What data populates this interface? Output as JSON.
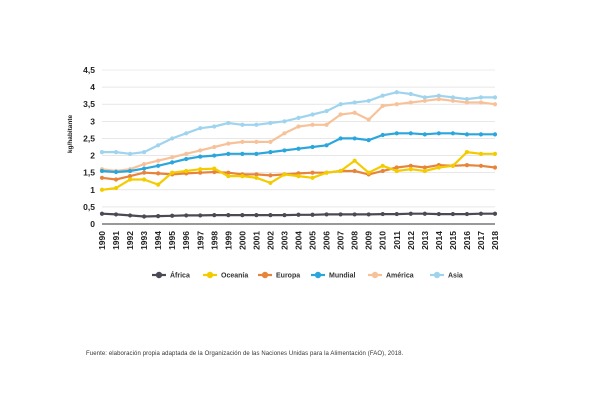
{
  "chart_data": {
    "type": "line",
    "title": "",
    "ylabel": "kg/habitante",
    "xlabel": "",
    "ylim": [
      0,
      4.5
    ],
    "y_ticks": [
      "0",
      "0,5",
      "1",
      "1,5",
      "2",
      "2,5",
      "3",
      "3,5",
      "4",
      "4,5"
    ],
    "grid": true,
    "legend_position": "bottom",
    "categories": [
      "1990",
      "1991",
      "1992",
      "1993",
      "1994",
      "1995",
      "1996",
      "1997",
      "1998",
      "1999",
      "2000",
      "2001",
      "2002",
      "2003",
      "2004",
      "2005",
      "2006",
      "2007",
      "2008",
      "2009",
      "2010",
      "2011",
      "2012",
      "2013",
      "2014",
      "2015",
      "2016",
      "2017",
      "2018"
    ],
    "series": [
      {
        "name": "África",
        "color": "#4a4a55",
        "values": [
          0.3,
          0.28,
          0.25,
          0.22,
          0.23,
          0.24,
          0.25,
          0.25,
          0.26,
          0.26,
          0.26,
          0.26,
          0.26,
          0.26,
          0.27,
          0.27,
          0.28,
          0.28,
          0.28,
          0.28,
          0.29,
          0.29,
          0.3,
          0.3,
          0.29,
          0.29,
          0.29,
          0.3,
          0.3
        ]
      },
      {
        "name": "Oceanía",
        "color": "#f3cc00",
        "values": [
          1.0,
          1.05,
          1.3,
          1.3,
          1.15,
          1.5,
          1.55,
          1.6,
          1.62,
          1.4,
          1.4,
          1.35,
          1.2,
          1.45,
          1.4,
          1.35,
          1.5,
          1.55,
          1.85,
          1.5,
          1.7,
          1.55,
          1.6,
          1.55,
          1.65,
          1.7,
          2.1,
          2.05,
          2.05
        ]
      },
      {
        "name": "Europa",
        "color": "#e8843a",
        "values": [
          1.35,
          1.3,
          1.4,
          1.5,
          1.48,
          1.45,
          1.48,
          1.5,
          1.52,
          1.5,
          1.45,
          1.45,
          1.42,
          1.45,
          1.48,
          1.5,
          1.5,
          1.55,
          1.55,
          1.45,
          1.55,
          1.65,
          1.7,
          1.65,
          1.72,
          1.7,
          1.72,
          1.7,
          1.65
        ]
      },
      {
        "name": "Mundial",
        "color": "#2aa6dc",
        "values": [
          1.55,
          1.52,
          1.55,
          1.62,
          1.7,
          1.8,
          1.9,
          1.97,
          2.0,
          2.05,
          2.05,
          2.05,
          2.1,
          2.15,
          2.2,
          2.25,
          2.3,
          2.5,
          2.5,
          2.45,
          2.6,
          2.65,
          2.65,
          2.62,
          2.65,
          2.65,
          2.62,
          2.62,
          2.62
        ]
      },
      {
        "name": "América",
        "color": "#f7c29a",
        "values": [
          1.6,
          1.55,
          1.6,
          1.75,
          1.85,
          1.95,
          2.05,
          2.15,
          2.25,
          2.35,
          2.4,
          2.4,
          2.4,
          2.65,
          2.85,
          2.9,
          2.9,
          3.2,
          3.25,
          3.05,
          3.45,
          3.5,
          3.55,
          3.6,
          3.65,
          3.6,
          3.55,
          3.55,
          3.5
        ]
      },
      {
        "name": "Asia",
        "color": "#9fd4ef",
        "values": [
          2.1,
          2.1,
          2.05,
          2.1,
          2.3,
          2.5,
          2.65,
          2.8,
          2.85,
          2.95,
          2.9,
          2.9,
          2.95,
          3.0,
          3.1,
          3.2,
          3.3,
          3.5,
          3.55,
          3.6,
          3.75,
          3.85,
          3.8,
          3.7,
          3.75,
          3.7,
          3.65,
          3.7,
          3.7
        ]
      }
    ]
  },
  "source": "Fuente: elaboración propia adaptada de la Organización de las Naciones Unidas para la Alimentación (FAO), 2018."
}
